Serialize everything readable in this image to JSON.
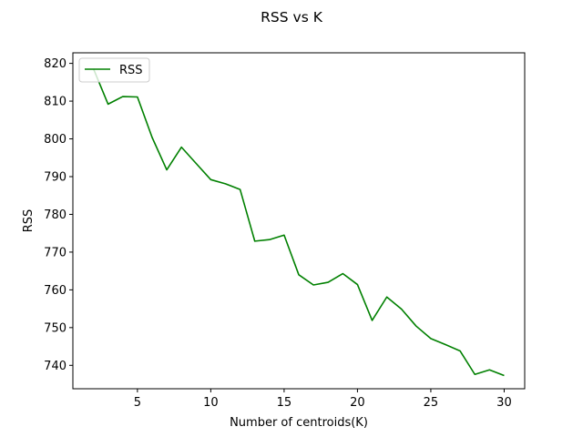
{
  "chart_data": {
    "type": "line",
    "title": "RSS vs K",
    "xlabel": "Number of centroids(K)",
    "ylabel": "RSS",
    "xlim": [
      0.6,
      31.4
    ],
    "ylim": [
      733.8,
      822.8
    ],
    "xticks": [
      5,
      10,
      15,
      20,
      25,
      30
    ],
    "yticks": [
      740,
      750,
      760,
      770,
      780,
      790,
      800,
      810,
      820
    ],
    "grid": false,
    "legend_position": "top-left",
    "series": [
      {
        "name": "RSS",
        "color": "#008000",
        "x": [
          2,
          3,
          4,
          5,
          6,
          7,
          8,
          9,
          10,
          11,
          12,
          13,
          14,
          15,
          16,
          17,
          18,
          19,
          20,
          21,
          22,
          23,
          24,
          25,
          26,
          27,
          28,
          29,
          30
        ],
        "y": [
          818.6,
          809.2,
          811.2,
          811.1,
          800.4,
          791.8,
          797.8,
          793.5,
          789.2,
          788.1,
          786.6,
          772.9,
          773.3,
          774.5,
          764.0,
          761.3,
          762.0,
          764.3,
          761.4,
          751.9,
          758.1,
          754.9,
          750.4,
          747.1,
          745.5,
          743.8,
          737.6,
          738.8,
          737.3
        ]
      }
    ]
  }
}
